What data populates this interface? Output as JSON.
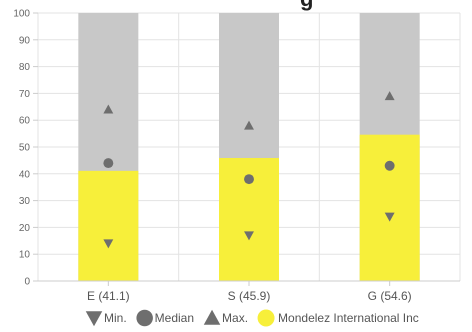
{
  "title_fragment": "g",
  "chart_data": {
    "type": "bar",
    "categories": [
      "E (41.1)",
      "S (45.9)",
      "G (54.6)"
    ],
    "ylim": [
      0,
      100
    ],
    "yticks": [
      0,
      10,
      20,
      30,
      40,
      50,
      60,
      70,
      80,
      90,
      100
    ],
    "grid": true,
    "series": [
      {
        "name": "Mondelez International Inc",
        "values": [
          41.1,
          45.9,
          54.6
        ],
        "color": "#f7ef3a"
      }
    ],
    "range_band": {
      "values": [
        100,
        100,
        100
      ],
      "color": "#c8c8c8"
    },
    "markers": [
      {
        "name": "Min.",
        "shape": "triangle-down",
        "values": [
          14,
          17,
          24
        ],
        "color": "#6e6e6e"
      },
      {
        "name": "Median",
        "shape": "circle",
        "values": [
          44,
          38,
          43
        ],
        "color": "#6e6e6e"
      },
      {
        "name": "Max.",
        "shape": "triangle-up",
        "values": [
          64,
          58,
          69
        ],
        "color": "#6e6e6e"
      }
    ],
    "legend_position": "bottom",
    "legend": [
      "Min.",
      "Median",
      "Max.",
      "Mondelez International Inc"
    ]
  }
}
